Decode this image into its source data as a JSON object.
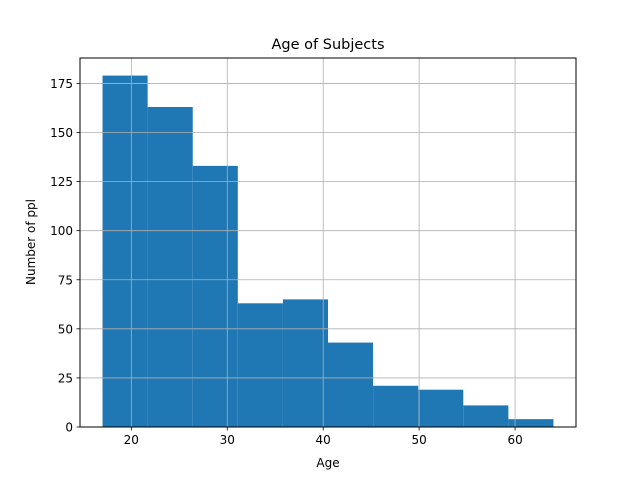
{
  "chart_data": {
    "type": "bar",
    "title": "Age of Subjects",
    "xlabel": "Age",
    "ylabel": "Number of ppl",
    "bins": [
      {
        "start": 17.0,
        "end": 21.7,
        "count": 179
      },
      {
        "start": 21.7,
        "end": 26.4,
        "count": 163
      },
      {
        "start": 26.4,
        "end": 31.1,
        "count": 133
      },
      {
        "start": 31.1,
        "end": 35.8,
        "count": 63
      },
      {
        "start": 35.8,
        "end": 40.5,
        "count": 65
      },
      {
        "start": 40.5,
        "end": 45.2,
        "count": 43
      },
      {
        "start": 45.2,
        "end": 49.9,
        "count": 21
      },
      {
        "start": 49.9,
        "end": 54.6,
        "count": 19
      },
      {
        "start": 54.6,
        "end": 59.3,
        "count": 11
      },
      {
        "start": 59.3,
        "end": 64.0,
        "count": 4
      }
    ],
    "xlim": [
      14.65,
      66.35
    ],
    "ylim": [
      0,
      187.95
    ],
    "xticks": [
      20,
      30,
      40,
      50,
      60
    ],
    "yticks": [
      0,
      25,
      50,
      75,
      100,
      125,
      150,
      175
    ],
    "grid": true,
    "bar_color": "#1f77b4"
  }
}
